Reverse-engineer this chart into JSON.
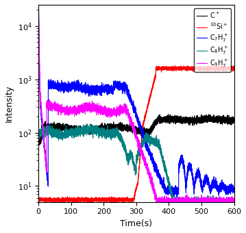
{
  "title": "",
  "xlabel": "Time(s)",
  "ylabel": "Intensity",
  "xlim": [
    0,
    600
  ],
  "ylim_log": [
    5,
    25000
  ],
  "yticks": [
    10,
    100,
    1000,
    10000
  ],
  "series": [
    {
      "label": "C$^+$",
      "color": "black"
    },
    {
      "label": "$^{30}$Si$^+$",
      "color": "red"
    },
    {
      "label": "C$_7$H$_7^+$",
      "color": "blue"
    },
    {
      "label": "C$_8$H$_7^+$",
      "color": "teal"
    },
    {
      "label": "C$_9$H$_7^+$",
      "color": "magenta"
    }
  ],
  "legend_fontsize": 7,
  "tick_fontsize": 8,
  "label_fontsize": 9
}
